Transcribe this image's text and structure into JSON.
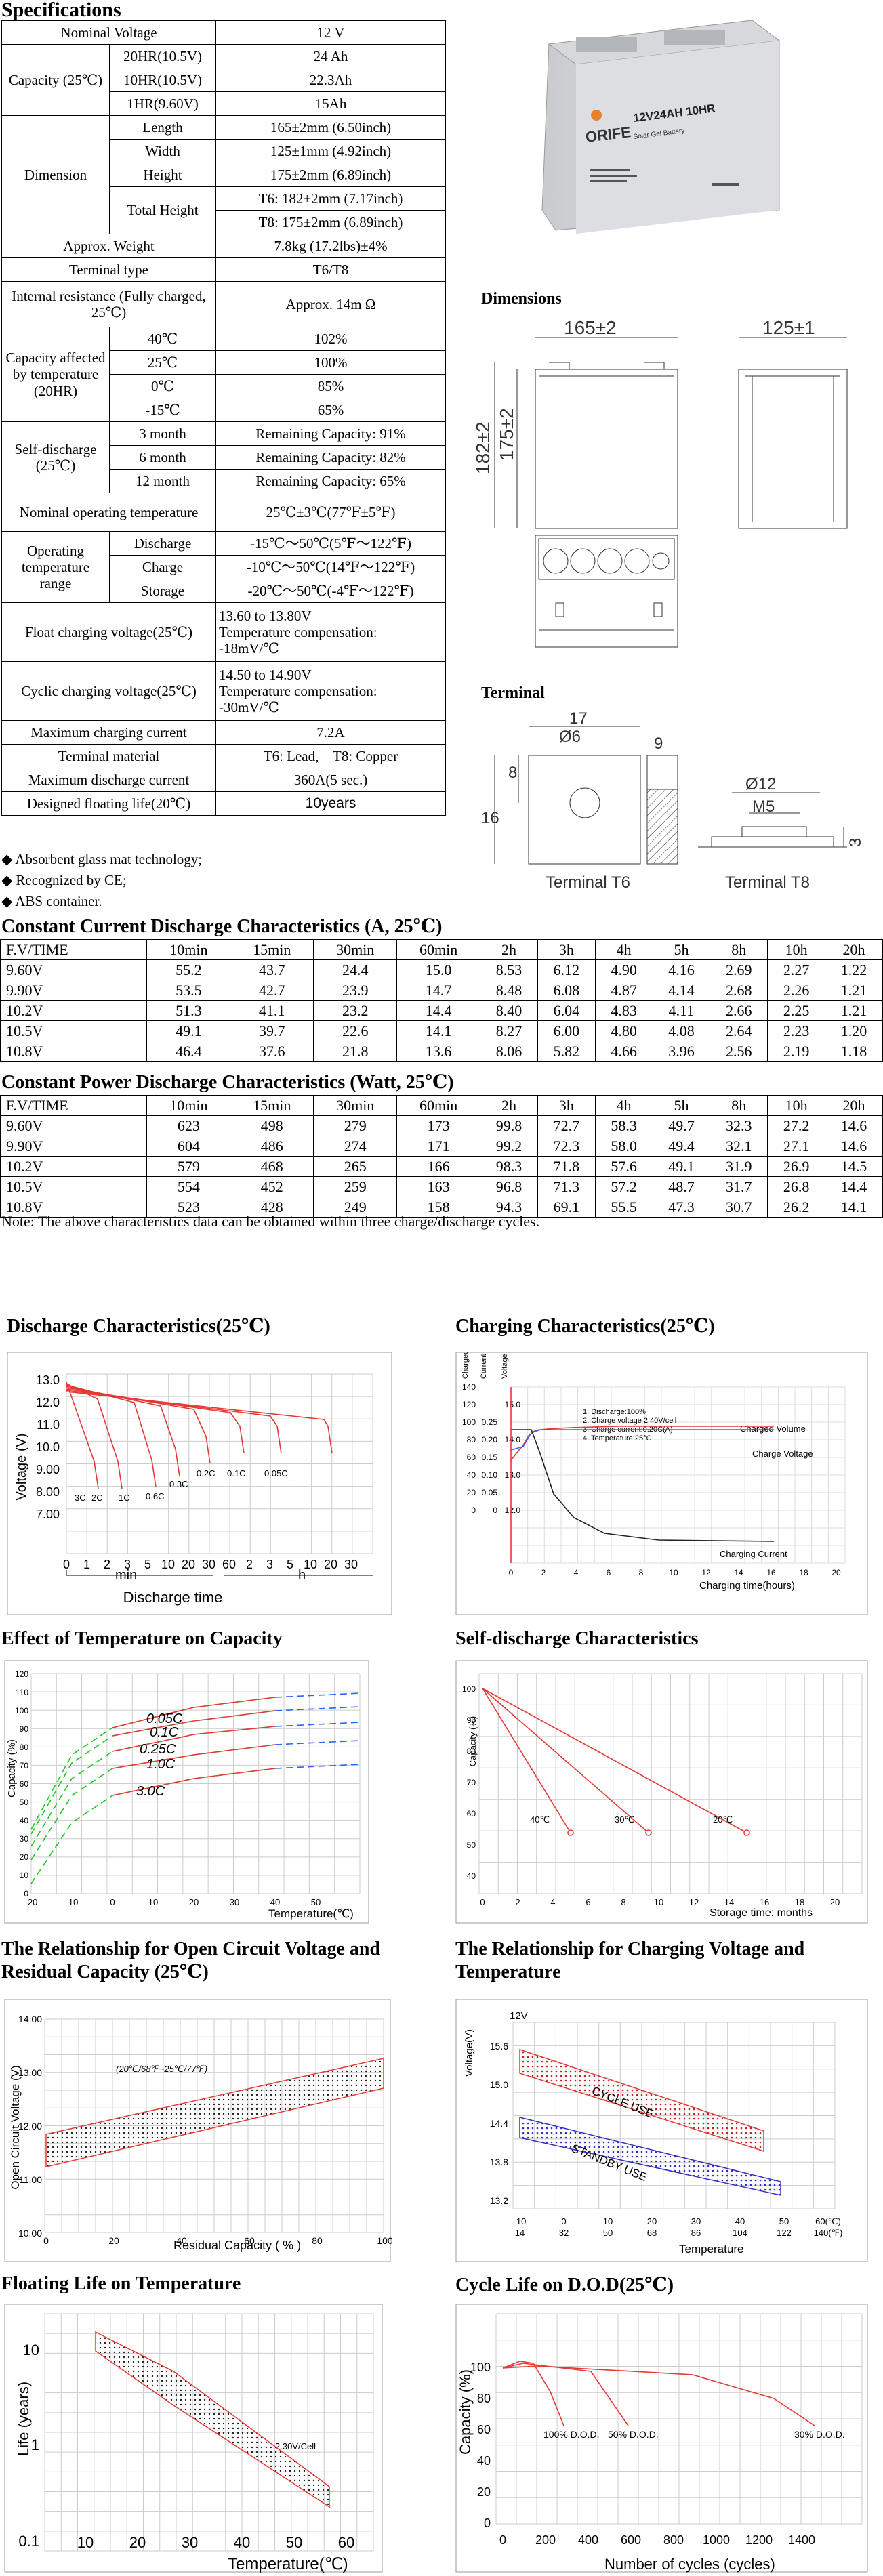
{
  "specs_title": "Specifications",
  "spec": {
    "nominal_voltage": {
      "label": "Nominal Voltage",
      "value": "12 V"
    },
    "capacity": {
      "label": "Capacity (25℃)",
      "rows": [
        {
          "k": "20HR(10.5V)",
          "v": "24 Ah"
        },
        {
          "k": "10HR(10.5V)",
          "v": "22.3Ah"
        },
        {
          "k": "1HR(9.60V)",
          "v": "15Ah"
        }
      ]
    },
    "dimension": {
      "label": "Dimension",
      "length": {
        "k": "Length",
        "v": "165±2mm (6.50inch)"
      },
      "width": {
        "k": "Width",
        "v": "125±1mm (4.92inch)"
      },
      "height": {
        "k": "Height",
        "v": "175±2mm (6.89inch)"
      },
      "total_height": {
        "k": "Total Height",
        "v1": "T6: 182±2mm (7.17inch)",
        "v2": "T8: 175±2mm (6.89inch)"
      }
    },
    "weight": {
      "label": "Approx. Weight",
      "value": "7.8kg (17.2lbs)±4%"
    },
    "terminal_type": {
      "label": "Terminal type",
      "value": "T6/T8"
    },
    "internal_resistance": {
      "label": "Internal resistance (Fully charged, 25℃)",
      "value": "Approx. 14m Ω"
    },
    "temp_capacity": {
      "label": "Capacity affected by temperature (20HR)",
      "rows": [
        {
          "k": "40℃",
          "v": "102%"
        },
        {
          "k": "25℃",
          "v": "100%"
        },
        {
          "k": "0℃",
          "v": "85%"
        },
        {
          "k": "-15℃",
          "v": "65%"
        }
      ]
    },
    "self_discharge": {
      "label": "Self-discharge (25℃)",
      "rows": [
        {
          "k": "3 month",
          "v": "Remaining Capacity: 91%"
        },
        {
          "k": "6 month",
          "v": "Remaining Capacity: 82%"
        },
        {
          "k": "12 month",
          "v": "Remaining Capacity: 65%"
        }
      ]
    },
    "nominal_op_temp": {
      "label": "Nominal operating temperature",
      "value": "25℃±3℃(77℉±5℉)"
    },
    "op_temp_range": {
      "label": "Operating temperature range",
      "rows": [
        {
          "k": "Discharge",
          "v": "-15℃～50℃(5℉～122℉)"
        },
        {
          "k": "Charge",
          "v": "-10℃～50℃(14℉～122℉)"
        },
        {
          "k": "Storage",
          "v": "-20℃～50℃(-4℉～122℉)"
        }
      ]
    },
    "float_voltage": {
      "label": "Float charging voltage(25℃)",
      "l1": "13.60 to 13.80V",
      "l2": "Temperature compensation:",
      "l3": "-18mV/℃"
    },
    "cyclic_voltage": {
      "label": "Cyclic charging voltage(25℃)",
      "l1": "14.50 to 14.90V",
      "l2": "Temperature compensation:",
      "l3": "-30mV/℃"
    },
    "max_charge_current": {
      "label": "Maximum charging current",
      "value": "7.2A"
    },
    "terminal_material": {
      "label": "Terminal material",
      "value": "T6: Lead,    T8: Copper"
    },
    "max_discharge_current": {
      "label": "Maximum discharge current",
      "value": "360A(5 sec.)"
    },
    "floating_life": {
      "label": "Designed floating life(20℃)",
      "value": "10years"
    }
  },
  "bullets": [
    "Absorbent glass mat technology;",
    "Recognized by CE;",
    "ABS container."
  ],
  "battery_label": {
    "model": "12V24AH 10HR",
    "sub": "Solar Gel Battery"
  },
  "dimensions": {
    "title": "Dimensions",
    "w1": "165±2",
    "w2": "125±1",
    "h1": "182±2",
    "h2": "175±2"
  },
  "terminal": {
    "title": "Terminal",
    "d17": "17",
    "d6": "Ø6",
    "d9": "9",
    "d8": "8",
    "d16": "16",
    "t6": "Terminal T6",
    "d12": "Ø12",
    "m5": "M5",
    "d3": "3",
    "t8": "Terminal T8"
  },
  "current_table": {
    "title": "Constant Current Discharge Characteristics (A, 25℃)",
    "header": [
      "F.V/TIME",
      "10min",
      "15min",
      "30min",
      "60min",
      "2h",
      "3h",
      "4h",
      "5h",
      "8h",
      "10h",
      "20h"
    ],
    "rows": [
      [
        "9.60V",
        "55.2",
        "43.7",
        "24.4",
        "15.0",
        "8.53",
        "6.12",
        "4.90",
        "4.16",
        "2.69",
        "2.27",
        "1.22"
      ],
      [
        "9.90V",
        "53.5",
        "42.7",
        "23.9",
        "14.7",
        "8.48",
        "6.08",
        "4.87",
        "4.14",
        "2.68",
        "2.26",
        "1.21"
      ],
      [
        "10.2V",
        "51.3",
        "41.1",
        "23.2",
        "14.4",
        "8.40",
        "6.04",
        "4.83",
        "4.11",
        "2.66",
        "2.25",
        "1.21"
      ],
      [
        "10.5V",
        "49.1",
        "39.7",
        "22.6",
        "14.1",
        "8.27",
        "6.00",
        "4.80",
        "4.08",
        "2.64",
        "2.23",
        "1.20"
      ],
      [
        "10.8V",
        "46.4",
        "37.6",
        "21.8",
        "13.6",
        "8.06",
        "5.82",
        "4.66",
        "3.96",
        "2.56",
        "2.19",
        "1.18"
      ]
    ]
  },
  "power_table": {
    "title": "Constant Power Discharge Characteristics (Watt, 25℃)",
    "header": [
      "F.V/TIME",
      "10min",
      "15min",
      "30min",
      "60min",
      "2h",
      "3h",
      "4h",
      "5h",
      "8h",
      "10h",
      "20h"
    ],
    "rows": [
      [
        "9.60V",
        "623",
        "498",
        "279",
        "173",
        "99.8",
        "72.7",
        "58.3",
        "49.7",
        "32.3",
        "27.2",
        "14.6"
      ],
      [
        "9.90V",
        "604",
        "486",
        "274",
        "171",
        "99.2",
        "72.3",
        "58.0",
        "49.4",
        "32.1",
        "27.1",
        "14.6"
      ],
      [
        "10.2V",
        "579",
        "468",
        "265",
        "166",
        "98.3",
        "71.8",
        "57.6",
        "49.1",
        "31.9",
        "26.9",
        "14.5"
      ],
      [
        "10.5V",
        "554",
        "452",
        "259",
        "163",
        "96.8",
        "71.3",
        "57.2",
        "48.7",
        "31.7",
        "26.8",
        "14.4"
      ],
      [
        "10.8V",
        "523",
        "428",
        "249",
        "158",
        "94.3",
        "69.1",
        "55.5",
        "47.3",
        "30.7",
        "26.2",
        "14.1"
      ]
    ]
  },
  "note": "Note: The above characteristics data can be obtained within three charge/discharge cycles.",
  "charts": {
    "discharge": {
      "title": "Discharge Characteristics(25℃)",
      "ylabel": "Voltage (V)",
      "yticks": [
        "13.0",
        "12.0",
        "11.0",
        "10.0",
        "9.00",
        "8.00",
        "7.00"
      ],
      "xticks": [
        "0",
        "1",
        "2",
        "3",
        "5",
        "10",
        "20",
        "30",
        "60",
        "2",
        "3",
        "5",
        "10",
        "20",
        "30"
      ],
      "min": "min",
      "h": "h",
      "xlabel": "Discharge time",
      "curve_labels": [
        "3C",
        "2C",
        "1C",
        "0.6C",
        "0.3C",
        "0.2C",
        "0.1C",
        "0.05C"
      ]
    },
    "charging": {
      "title": "Charging Characteristics(25℃)",
      "ylabels": [
        "Charged Volume (%)",
        "Current (CA)",
        "Voltage (V)"
      ],
      "legend": [
        "1. Discharge:100%",
        "2. Charge voltage 2.40V/cell",
        "3. Charge current:0.20C(A)",
        "4. Temperature:25°C"
      ],
      "series": [
        "Charged Volume",
        "Charge Voltage",
        "Charging Current"
      ],
      "xlabel": "Charging time(hours)",
      "xticks": [
        "0",
        "2",
        "4",
        "6",
        "8",
        "10",
        "12",
        "14",
        "16",
        "18",
        "20"
      ]
    },
    "temp_capacity": {
      "title": "Effect of Temperature on Capacity",
      "ylabel": "Capacity (%)",
      "xlabel": "Temperature(℃)",
      "yticks": [
        "120",
        "110",
        "100",
        "90",
        "80",
        "70",
        "60",
        "50",
        "40",
        "30",
        "20",
        "10",
        "0"
      ],
      "xticks": [
        "-20",
        "-10",
        "0",
        "10",
        "20",
        "30",
        "40",
        "50"
      ],
      "labels": [
        "0.05C",
        "0.1C",
        "0.25C",
        "1.0C",
        "3.0C"
      ]
    },
    "self_discharge": {
      "title": "Self-discharge Characteristics",
      "ylabel": "Capacity (%)",
      "xlabel": "Storage time: months",
      "yticks": [
        "100",
        "90",
        "80",
        "70",
        "60",
        "50",
        "40"
      ],
      "xticks": [
        "0",
        "2",
        "4",
        "6",
        "8",
        "10",
        "12",
        "14",
        "16",
        "18",
        "20"
      ],
      "labels": [
        "40℃",
        "30℃",
        "20℃"
      ]
    },
    "ocv": {
      "title": "The Relationship for Open Circuit Voltage and Residual Capacity (25℃)",
      "ylabel": "Open Circuit Voltage (V)",
      "xlabel": "Residual Capacity ( % )",
      "yticks": [
        "14.00",
        "13.00",
        "12.00",
        "11.00",
        "10.00"
      ],
      "xticks": [
        "0",
        "20",
        "40",
        "60",
        "80",
        "100"
      ],
      "band_label": "(20℃/68℉~25℃/77℉)"
    },
    "charge_voltage": {
      "title": "The Relationship for Charging Voltage and Temperature",
      "ylabel": "Voltage(V)",
      "xlabel": "Temperature",
      "y12": "12V",
      "yticks": [
        "15.6",
        "15.0",
        "14.4",
        "13.8",
        "13.2"
      ],
      "xticks_c": [
        "-10",
        "0",
        "10",
        "20",
        "30",
        "40",
        "50",
        "60(℃)"
      ],
      "xticks_f": [
        "14",
        "32",
        "50",
        "68",
        "86",
        "104",
        "122",
        "140(℉)"
      ],
      "labels": [
        "CYCLE USE",
        "STANDBY USE"
      ]
    },
    "floating_life": {
      "title": "Floating Life on Temperature",
      "ylabel": "Life (years)",
      "xlabel": "Temperature(℃)",
      "yticks": [
        "10",
        "1",
        "0.1"
      ],
      "xticks": [
        "10",
        "20",
        "30",
        "40",
        "50",
        "60"
      ],
      "band_label": "2.30V/Cell"
    },
    "cycle_life": {
      "title": "Cycle Life on D.O.D(25℃)",
      "ylabel": "Capacity (%)",
      "xlabel": "Number of cycles (cycles)",
      "yticks": [
        "100",
        "80",
        "60",
        "40",
        "20",
        "0"
      ],
      "xticks": [
        "0",
        "200",
        "400",
        "600",
        "800",
        "1000",
        "1200",
        "1400"
      ],
      "labels": [
        "100% D.O.D.",
        "50% D.O.D.",
        "30% D.O.D."
      ]
    }
  }
}
